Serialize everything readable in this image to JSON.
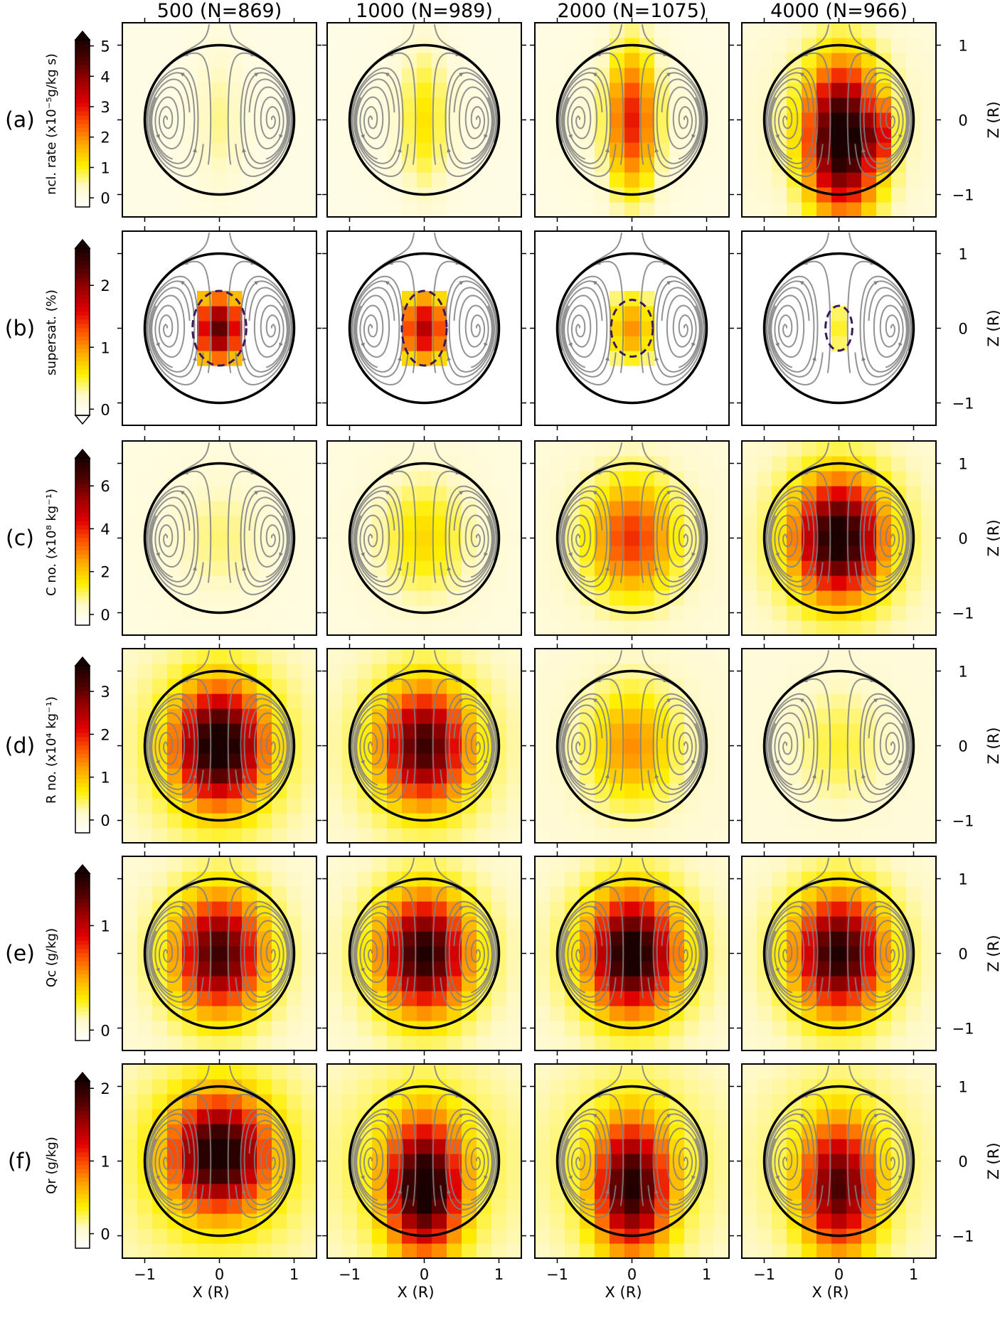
{
  "figure": {
    "columns": [
      "500 (N=869)",
      "1000 (N=989)",
      "2000 (N=1075)",
      "4000 (N=966)"
    ],
    "xlabel": "X (R)",
    "ylabel_right": "Z (R)",
    "x_ticks": [
      "−1",
      "0",
      "1"
    ],
    "z_ticks": [
      "1",
      "0",
      "−1"
    ],
    "x_tick_values": [
      -1,
      0,
      1
    ],
    "z_tick_values": [
      1,
      0,
      -1
    ],
    "x_range": [
      -1.3,
      1.3
    ],
    "z_range": [
      -1.3,
      1.3
    ],
    "rows": [
      {
        "panel": "(a)",
        "colorbar_label": "ncl. rate (x10⁻⁵g/kg s)",
        "ticks": [
          "0",
          "1",
          "2",
          "3",
          "4",
          "5"
        ],
        "tick_values": [
          0,
          1,
          2,
          3,
          4,
          5
        ],
        "vmin": -0.3,
        "vmax": 5.2,
        "extend": "max"
      },
      {
        "panel": "(b)",
        "colorbar_label": "supersat. (%)",
        "ticks": [
          "0",
          "1",
          "2"
        ],
        "tick_values": [
          0,
          1,
          2
        ],
        "vmin": -0.1,
        "vmax": 2.6,
        "extend": "both"
      },
      {
        "panel": "(c)",
        "colorbar_label": "C no. (x10⁸ kg⁻¹)",
        "ticks": [
          "0",
          "2",
          "4",
          "6"
        ],
        "tick_values": [
          0,
          2,
          4,
          6
        ],
        "vmin": -0.5,
        "vmax": 7.3,
        "extend": "max"
      },
      {
        "panel": "(d)",
        "colorbar_label": "R no. (x10⁴ kg⁻¹)",
        "ticks": [
          "0",
          "1",
          "2",
          "3"
        ],
        "tick_values": [
          0,
          1,
          2,
          3
        ],
        "vmin": -0.3,
        "vmax": 3.6,
        "extend": "max"
      },
      {
        "panel": "(e)",
        "colorbar_label": "Qc (g/kg)",
        "ticks": [
          "0",
          "1"
        ],
        "tick_values": [
          0,
          1
        ],
        "vmin": -0.1,
        "vmax": 1.5,
        "extend": "max"
      },
      {
        "panel": "(f)",
        "colorbar_label": "Qr (g/kg)",
        "ticks": [
          "0",
          "1",
          "2"
        ],
        "tick_values": [
          0,
          1,
          2
        ],
        "vmin": -0.2,
        "vmax": 2.1,
        "extend": "max"
      }
    ],
    "colors": {
      "colormap": [
        "#ffffff",
        "#fff9c8",
        "#ffef00",
        "#ffaa00",
        "#ff5500",
        "#e00000",
        "#a00000",
        "#500000",
        "#1a0000"
      ],
      "streamline": "#808080",
      "circle": "#000000",
      "dashed_contour": "#3a1a5a"
    }
  },
  "chart_data": {
    "type": "heatmap",
    "title": "",
    "xlabel": "X (R)",
    "ylabel": "Z (R)",
    "column_titles": [
      "500 (N=869)",
      "1000 (N=989)",
      "2000 (N=1075)",
      "4000 (N=966)"
    ],
    "row_labels": [
      "(a)",
      "(b)",
      "(c)",
      "(d)",
      "(e)",
      "(f)"
    ],
    "grid": false,
    "circle_radius": 1,
    "peak_values_estimated": {
      "ncl_rate": [
        0.6,
        1.2,
        3.0,
        5.2
      ],
      "supersat": [
        2.2,
        1.8,
        1.0,
        0.5
      ],
      "C_no": [
        0.8,
        1.6,
        3.5,
        7.0
      ],
      "R_no": [
        3.6,
        3.0,
        1.2,
        0.5
      ],
      "Qc": [
        1.25,
        1.35,
        1.45,
        1.35
      ],
      "Qr": [
        2.0,
        2.1,
        1.9,
        1.7
      ]
    },
    "core_shape": {
      "ncl_rate": [
        "column",
        "column",
        "column",
        "core_right_skew"
      ],
      "supersat": [
        "core_small",
        "core_small",
        "core_small",
        "core_tiny"
      ],
      "C_no": [
        "ring_in",
        "ring_in",
        "ring_in",
        "ring_in"
      ],
      "R_no": [
        "ring_in",
        "ring_in",
        "ring_in",
        "ring_in"
      ],
      "Qc": [
        "ring_in",
        "ring_in",
        "ring_in",
        "ring_in"
      ],
      "Qr": [
        "wide_bottom",
        "column_bottom",
        "column_bottom",
        "column_bottom"
      ]
    }
  }
}
